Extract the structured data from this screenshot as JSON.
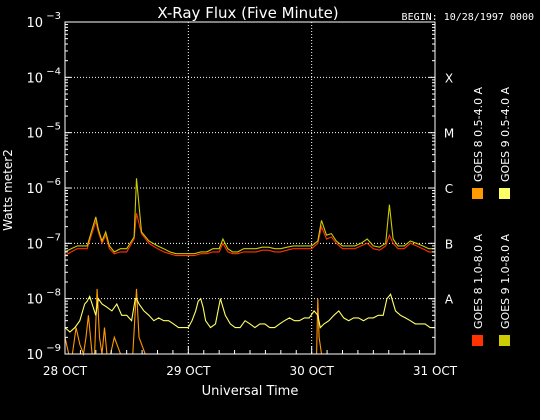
{
  "chart_data": {
    "type": "line",
    "title": "X-Ray Flux (Five Minute)",
    "begin_label": "BEGIN: 10/28/1997 0000",
    "xlabel": "Universal Time",
    "ylabel": "Watts meter2",
    "x_ticks": [
      {
        "value": 0,
        "label": "28 OCT"
      },
      {
        "value": 1,
        "label": "29 OCT"
      },
      {
        "value": 2,
        "label": "30 OCT"
      },
      {
        "value": 3,
        "label": "31 OCT"
      }
    ],
    "y_scale": "log",
    "ylim": [
      1e-09,
      0.001
    ],
    "y_ticks": [
      {
        "exp": -9,
        "base": "10",
        "sup": "−9"
      },
      {
        "exp": -8,
        "base": "10",
        "sup": "−8"
      },
      {
        "exp": -7,
        "base": "10",
        "sup": "−7"
      },
      {
        "exp": -6,
        "base": "10",
        "sup": "−6"
      },
      {
        "exp": -5,
        "base": "10",
        "sup": "−5"
      },
      {
        "exp": -4,
        "base": "10",
        "sup": "−4"
      },
      {
        "exp": -3,
        "base": "10",
        "sup": "−3"
      }
    ],
    "flare_classes": [
      {
        "label": "A",
        "exp": -8
      },
      {
        "label": "B",
        "exp": -7
      },
      {
        "label": "C",
        "exp": -6
      },
      {
        "label": "M",
        "exp": -5
      },
      {
        "label": "X",
        "exp": -4
      }
    ],
    "grid": true,
    "legend_position": "right",
    "series": [
      {
        "name": "GOES 8 1.0-8.0 A",
        "color": "#ff3300",
        "x": [
          0,
          0.05,
          0.1,
          0.18,
          0.25,
          0.27,
          0.3,
          0.33,
          0.36,
          0.4,
          0.45,
          0.5,
          0.56,
          0.58,
          0.62,
          0.68,
          0.75,
          0.8,
          0.85,
          0.9,
          0.95,
          1.0,
          1.05,
          1.1,
          1.15,
          1.2,
          1.25,
          1.28,
          1.32,
          1.36,
          1.4,
          1.45,
          1.5,
          1.55,
          1.6,
          1.65,
          1.7,
          1.75,
          1.8,
          1.85,
          1.9,
          1.95,
          2.0,
          2.05,
          2.08,
          2.12,
          2.16,
          2.2,
          2.25,
          2.3,
          2.35,
          2.4,
          2.45,
          2.5,
          2.55,
          2.6,
          2.63,
          2.66,
          2.7,
          2.75,
          2.8,
          2.85,
          2.9,
          2.95,
          3.0
        ],
        "values": [
          6e-08,
          7e-08,
          8e-08,
          8e-08,
          2.5e-07,
          1.6e-07,
          1e-07,
          1.4e-07,
          8e-08,
          6.5e-08,
          7e-08,
          7e-08,
          1.2e-07,
          3.5e-07,
          1.5e-07,
          1e-07,
          8e-08,
          7e-08,
          6.5e-08,
          6e-08,
          6e-08,
          6e-08,
          6e-08,
          6.5e-08,
          6.5e-08,
          7e-08,
          7e-08,
          1e-07,
          7e-08,
          6.5e-08,
          6.5e-08,
          7e-08,
          7e-08,
          7e-08,
          7.5e-08,
          7.5e-08,
          7e-08,
          7e-08,
          7.5e-08,
          8e-08,
          8e-08,
          8e-08,
          8e-08,
          1e-07,
          2e-07,
          1.2e-07,
          1.3e-07,
          1e-07,
          8e-08,
          8e-08,
          8e-08,
          9e-08,
          1e-07,
          8e-08,
          7.5e-08,
          9e-08,
          1.4e-07,
          1e-07,
          8e-08,
          8e-08,
          1e-07,
          9e-08,
          8e-08,
          7e-08,
          7e-08
        ]
      },
      {
        "name": "GOES 8 0.5-4.0 A",
        "color": "#ff9900",
        "x": [
          0,
          0.03,
          0.06,
          0.09,
          0.12,
          0.15,
          0.17,
          0.19,
          0.22,
          0.24,
          0.26,
          0.28,
          0.3,
          0.32,
          0.34,
          0.37,
          0.4,
          0.45,
          0.5,
          0.55,
          0.58,
          0.6,
          0.65,
          0.7,
          0.75,
          0.8,
          0.85,
          0.9,
          0.95,
          1.0,
          1.05,
          1.1,
          1.15,
          1.2,
          1.25,
          1.3,
          1.35,
          1.4,
          1.45,
          1.5,
          1.55,
          1.6,
          1.65,
          1.7,
          1.75,
          1.8,
          1.85,
          1.9,
          1.95,
          2.0,
          2.04,
          2.05,
          2.06,
          2.08,
          2.1,
          2.15,
          2.2,
          2.25,
          2.3,
          2.35,
          2.4,
          2.45,
          2.5,
          2.55,
          2.6,
          2.65,
          2.7,
          2.75,
          2.8,
          2.85,
          2.9,
          2.95,
          3.0
        ],
        "values": [
          2e-09,
          1e-09,
          1e-09,
          3e-09,
          1.5e-09,
          1e-09,
          2e-09,
          5e-09,
          1e-09,
          1e-09,
          1.5e-08,
          2e-09,
          1e-09,
          3e-09,
          1e-09,
          1e-09,
          2e-09,
          1e-09,
          1e-09,
          1e-09,
          1.5e-08,
          2e-09,
          1e-09,
          1e-09,
          1e-09,
          1e-09,
          1e-09,
          1e-09,
          1e-09,
          1e-09,
          1e-09,
          1e-09,
          1e-09,
          1e-09,
          1e-09,
          1e-09,
          1e-09,
          1e-09,
          1e-09,
          1e-09,
          1e-09,
          1e-09,
          1e-09,
          1e-09,
          1e-09,
          1e-09,
          1e-09,
          1e-09,
          1e-09,
          1e-09,
          1e-09,
          1e-08,
          2e-09,
          1e-09,
          1e-09,
          1e-09,
          1e-09,
          1e-09,
          1e-09,
          1e-09,
          1e-09,
          1e-09,
          1e-09,
          1e-09,
          1e-09,
          1e-09,
          1e-09,
          1e-09,
          1e-09,
          1e-09,
          1e-09,
          1e-09,
          1e-09
        ]
      },
      {
        "name": "GOES 9 1.0-8.0 A",
        "color": "#cccc00",
        "x": [
          0,
          0.05,
          0.1,
          0.18,
          0.25,
          0.27,
          0.3,
          0.33,
          0.36,
          0.4,
          0.45,
          0.5,
          0.56,
          0.58,
          0.62,
          0.68,
          0.75,
          0.8,
          0.85,
          0.9,
          0.95,
          1.0,
          1.05,
          1.1,
          1.15,
          1.2,
          1.25,
          1.28,
          1.32,
          1.36,
          1.4,
          1.45,
          1.5,
          1.55,
          1.6,
          1.65,
          1.7,
          1.75,
          1.8,
          1.85,
          1.9,
          1.95,
          2.0,
          2.05,
          2.08,
          2.12,
          2.16,
          2.2,
          2.25,
          2.3,
          2.35,
          2.4,
          2.45,
          2.5,
          2.55,
          2.6,
          2.63,
          2.66,
          2.7,
          2.75,
          2.8,
          2.85,
          2.9,
          2.95,
          3.0
        ],
        "values": [
          7e-08,
          8e-08,
          9e-08,
          9e-08,
          3e-07,
          1.8e-07,
          1.1e-07,
          1.6e-07,
          9e-08,
          7e-08,
          8e-08,
          8e-08,
          1.3e-07,
          1.5e-06,
          1.6e-07,
          1.1e-07,
          9e-08,
          8e-08,
          7e-08,
          6.5e-08,
          6.5e-08,
          6.5e-08,
          6.5e-08,
          7e-08,
          7e-08,
          8e-08,
          8e-08,
          1.2e-07,
          8e-08,
          7e-08,
          7e-08,
          8e-08,
          8e-08,
          8e-08,
          8.5e-08,
          8.5e-08,
          8e-08,
          8e-08,
          8.5e-08,
          9e-08,
          9e-08,
          9e-08,
          9e-08,
          1.1e-07,
          2.6e-07,
          1.4e-07,
          1.5e-07,
          1.1e-07,
          9e-08,
          9e-08,
          9e-08,
          1e-07,
          1.2e-07,
          9e-08,
          8.5e-08,
          1e-07,
          5e-07,
          1.2e-07,
          9e-08,
          9e-08,
          1.1e-07,
          1e-07,
          9e-08,
          8e-08,
          8e-08
        ]
      },
      {
        "name": "GOES 9 0.5-4.0 A",
        "color": "#ffff66",
        "x": [
          0,
          0.04,
          0.08,
          0.12,
          0.16,
          0.18,
          0.2,
          0.22,
          0.25,
          0.27,
          0.3,
          0.34,
          0.38,
          0.42,
          0.46,
          0.5,
          0.54,
          0.57,
          0.58,
          0.6,
          0.64,
          0.68,
          0.72,
          0.76,
          0.8,
          0.84,
          0.88,
          0.92,
          0.96,
          1.0,
          1.03,
          1.06,
          1.08,
          1.1,
          1.12,
          1.14,
          1.18,
          1.22,
          1.26,
          1.3,
          1.34,
          1.38,
          1.42,
          1.46,
          1.5,
          1.54,
          1.58,
          1.62,
          1.66,
          1.7,
          1.74,
          1.78,
          1.82,
          1.86,
          1.9,
          1.94,
          1.98,
          2.02,
          2.05,
          2.07,
          2.1,
          2.14,
          2.18,
          2.22,
          2.26,
          2.3,
          2.34,
          2.38,
          2.42,
          2.46,
          2.5,
          2.54,
          2.58,
          2.61,
          2.64,
          2.68,
          2.72,
          2.76,
          2.8,
          2.84,
          2.88,
          2.92,
          2.96,
          3.0
        ],
        "values": [
          3e-09,
          2.5e-09,
          3e-09,
          4e-09,
          8e-09,
          9e-09,
          1.1e-08,
          8e-09,
          5e-09,
          1e-08,
          8e-09,
          7e-09,
          6e-09,
          8e-09,
          5e-09,
          5e-09,
          4e-09,
          1e-08,
          1e-08,
          8e-09,
          6e-09,
          5e-09,
          4e-09,
          4.5e-09,
          4e-09,
          4e-09,
          3.5e-09,
          3e-09,
          3e-09,
          3e-09,
          4e-09,
          6e-09,
          9e-09,
          1e-08,
          7e-09,
          4e-09,
          3e-09,
          3.5e-09,
          1e-08,
          5e-09,
          3.5e-09,
          3e-09,
          3e-09,
          4e-09,
          3.5e-09,
          3e-09,
          3.5e-09,
          3.5e-09,
          3e-09,
          3e-09,
          3.5e-09,
          4e-09,
          4.5e-09,
          4e-09,
          4e-09,
          4.5e-09,
          4.5e-09,
          6e-09,
          5e-09,
          3e-09,
          3.5e-09,
          4e-09,
          5e-09,
          6e-09,
          4.5e-09,
          4e-09,
          4.5e-09,
          4.5e-09,
          4e-09,
          4.5e-09,
          4.5e-09,
          5e-09,
          5e-09,
          1e-08,
          1.2e-08,
          6e-09,
          5e-09,
          4.5e-09,
          4e-09,
          3.5e-09,
          3.5e-09,
          3.5e-09,
          3e-09,
          3e-09
        ]
      }
    ]
  }
}
